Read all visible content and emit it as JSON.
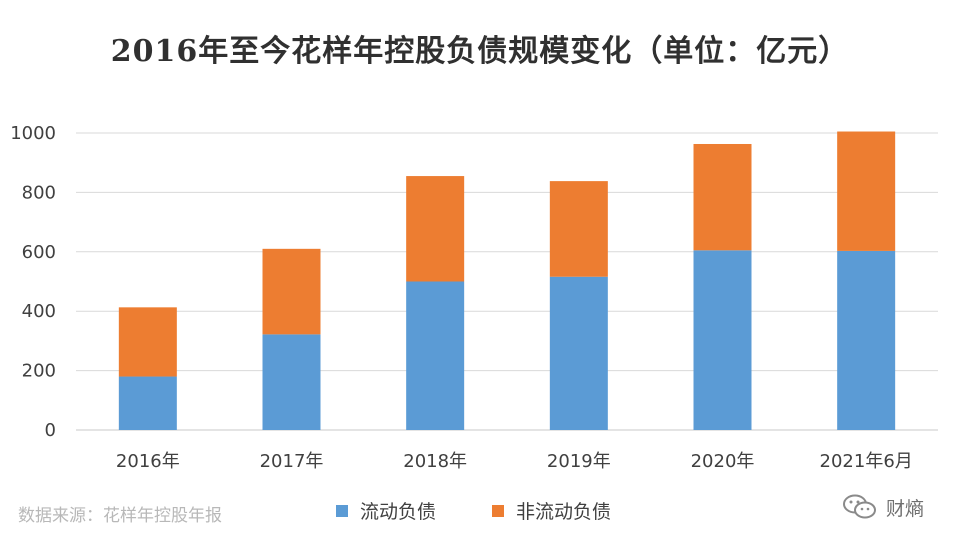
{
  "chart_data": {
    "type": "bar",
    "stacked": true,
    "title": "2016年至今花样年控股负债规模变化（单位：亿元）",
    "categories": [
      "2016年",
      "2017年",
      "2018年",
      "2019年",
      "2020年",
      "2021年6月"
    ],
    "series": [
      {
        "name": "流动负债",
        "values": [
          180,
          322,
          500,
          516,
          605,
          603
        ],
        "color": "#5b9bd5"
      },
      {
        "name": "非流动负债",
        "values": [
          233,
          288,
          355,
          322,
          358,
          402
        ],
        "color": "#ed7d31"
      }
    ],
    "ylim": [
      0,
      1000
    ],
    "yticks": [
      "0",
      "200",
      "400",
      "600",
      "800",
      "1000"
    ],
    "grid": true,
    "legend_position": "bottom"
  },
  "source_note": "数据来源：花样年控股年报",
  "watermark": {
    "icon": "wechat-icon",
    "text": "财熵"
  }
}
